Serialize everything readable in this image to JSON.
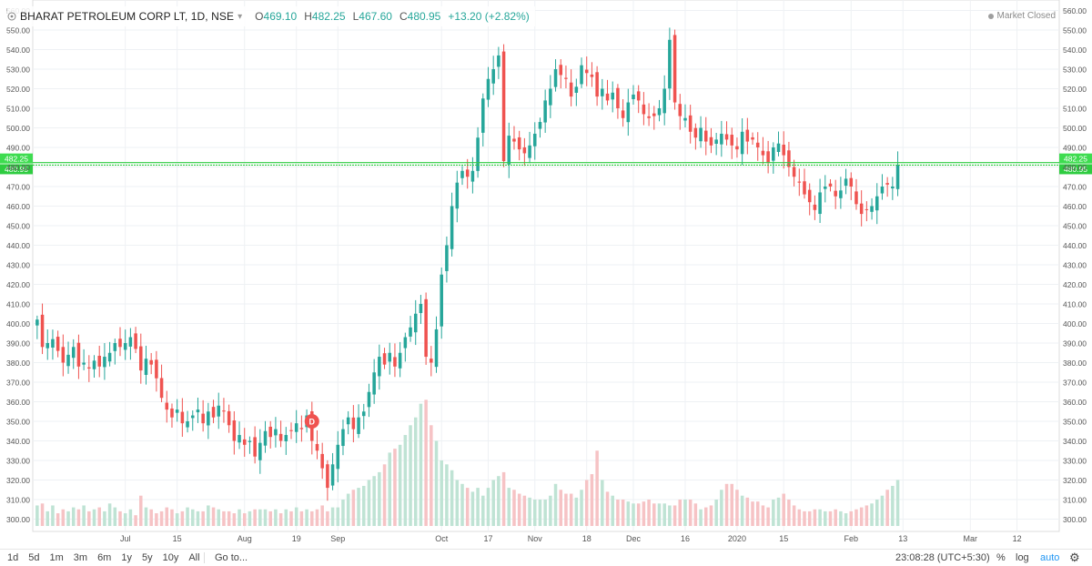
{
  "header": {
    "title": "BHARAT PETROLEUM CORP LT, 1D, NSE",
    "open_label": "O",
    "open": "469.10",
    "high_label": "H",
    "high": "482.25",
    "low_label": "L",
    "low": "467.60",
    "close_label": "C",
    "close": "480.95",
    "change": "+13.20 (+2.82%)"
  },
  "status": {
    "text": "Market Closed"
  },
  "footer": {
    "ranges": [
      "1d",
      "5d",
      "1m",
      "3m",
      "6m",
      "1y",
      "5y",
      "10y",
      "All"
    ],
    "goto": "Go to...",
    "time": "23:08:28 (UTC+5:30)",
    "percent": "%",
    "log": "log",
    "auto": "auto",
    "settings_icon": "gear-icon"
  },
  "colors": {
    "up": "#26a69a",
    "down": "#ef5350",
    "up_vol": "#bfe3d4",
    "down_vol": "#f6c3c5",
    "price_line": "#2ecc40",
    "grid": "#eef1f4",
    "axis_text": "#555555"
  },
  "chart_data": {
    "type": "candlestick",
    "ylim": [
      295,
      562
    ],
    "y_ticks": [
      300,
      310,
      320,
      330,
      340,
      350,
      360,
      370,
      380,
      390,
      400,
      410,
      420,
      430,
      440,
      450,
      460,
      470,
      480,
      490,
      500,
      510,
      520,
      530,
      540,
      550,
      560
    ],
    "y_tick_labels": [
      "300.00",
      "310.00",
      "320.00",
      "330.00",
      "340.00",
      "350.00",
      "360.00",
      "370.00",
      "380.00",
      "390.00",
      "400.00",
      "410.00",
      "420.00",
      "430.00",
      "440.00",
      "450.00",
      "460.00",
      "470.00",
      "480.00",
      "490.00",
      "500.00",
      "510.00",
      "520.00",
      "530.00",
      "540.00",
      "550.00",
      "560.00"
    ],
    "x_ticks": [
      {
        "label": "Jul",
        "index": 17
      },
      {
        "label": "15",
        "index": 27
      },
      {
        "label": "Aug",
        "index": 40
      },
      {
        "label": "19",
        "index": 50
      },
      {
        "label": "Sep",
        "index": 58
      },
      {
        "label": "Oct",
        "index": 78
      },
      {
        "label": "17",
        "index": 87
      },
      {
        "label": "Nov",
        "index": 96
      },
      {
        "label": "18",
        "index": 106
      },
      {
        "label": "Dec",
        "index": 115
      },
      {
        "label": "16",
        "index": 125
      },
      {
        "label": "2020",
        "index": 135
      },
      {
        "label": "15",
        "index": 144
      },
      {
        "label": "Feb",
        "index": 157
      },
      {
        "label": "13",
        "index": 167
      },
      {
        "label": "Mar",
        "index": 180
      },
      {
        "label": "12",
        "index": 189
      }
    ],
    "slots": 198,
    "last_close_label": "480.95",
    "last_high_label": "482.25",
    "last_close": 480.95,
    "last_high": 482.25,
    "marker": {
      "label": "D",
      "index": 53,
      "price": 350
    },
    "closes": [
      402,
      388,
      390,
      392,
      386,
      380,
      384,
      388,
      378,
      380,
      377,
      381,
      378,
      383,
      385,
      390,
      388,
      390,
      393,
      387,
      376,
      382,
      379,
      372,
      362,
      356,
      352,
      356,
      349,
      350,
      353,
      356,
      349,
      355,
      352,
      358,
      355,
      348,
      340,
      343,
      338,
      340,
      332,
      339,
      345,
      342,
      346,
      340,
      343,
      345,
      349,
      346,
      353,
      340,
      335,
      326,
      316,
      328,
      338,
      346,
      352,
      346,
      352,
      355,
      365,
      375,
      383,
      379,
      385,
      378,
      385,
      393,
      398,
      405,
      410,
      383,
      380,
      397,
      425,
      440,
      460,
      472,
      478,
      475,
      478,
      495,
      515,
      525,
      530,
      537,
      483,
      496,
      493,
      489,
      487,
      491,
      497,
      503,
      514,
      520,
      530,
      527,
      525,
      516,
      521,
      532,
      528,
      526,
      516,
      520,
      514,
      518,
      510,
      505,
      513,
      517,
      514,
      507,
      505,
      506,
      510,
      520,
      545,
      513,
      506,
      505,
      498,
      495,
      500,
      493,
      491,
      494,
      497,
      494,
      491,
      489,
      498,
      493,
      494,
      490,
      486,
      482,
      490,
      492,
      486,
      480,
      475,
      472,
      466,
      462,
      458,
      467,
      470,
      470,
      465,
      468,
      474,
      470,
      461,
      456,
      458,
      460,
      465,
      470,
      471,
      470,
      481
    ],
    "volume_approx": [
      307,
      308,
      304,
      307,
      303,
      305,
      304,
      306,
      305,
      307,
      304,
      305,
      306,
      304,
      308,
      306,
      304,
      303,
      305,
      302,
      312,
      306,
      305,
      303,
      304,
      306,
      305,
      303,
      304,
      306,
      305,
      304,
      304,
      307,
      306,
      305,
      304,
      304,
      303,
      305,
      303,
      304,
      305,
      305,
      305,
      304,
      305,
      303,
      305,
      304,
      306,
      304,
      305,
      304,
      305,
      307,
      304,
      306,
      306,
      310,
      313,
      315,
      316,
      317,
      320,
      322,
      324,
      328,
      334,
      336,
      338,
      343,
      348,
      352,
      359,
      361,
      348,
      340,
      330,
      328,
      325,
      320,
      318,
      316,
      314,
      316,
      312,
      316,
      320,
      322,
      324,
      316,
      315,
      313,
      312,
      311,
      310,
      310,
      310,
      312,
      318,
      315,
      313,
      313,
      311,
      315,
      320,
      323,
      335,
      320,
      314,
      312,
      310,
      310,
      309,
      308,
      308,
      309,
      310,
      308,
      308,
      308,
      307,
      307,
      310,
      310,
      310,
      308,
      305,
      306,
      307,
      310,
      315,
      318,
      318,
      315,
      312,
      311,
      309,
      309,
      307,
      306,
      310,
      311,
      313,
      310,
      307,
      305,
      304,
      304,
      305,
      305,
      304,
      304,
      305,
      304,
      303,
      304,
      305,
      306,
      307,
      308,
      310,
      312,
      315,
      317,
      320,
      305,
      306,
      304,
      303,
      304,
      305,
      306,
      307,
      308
    ]
  }
}
